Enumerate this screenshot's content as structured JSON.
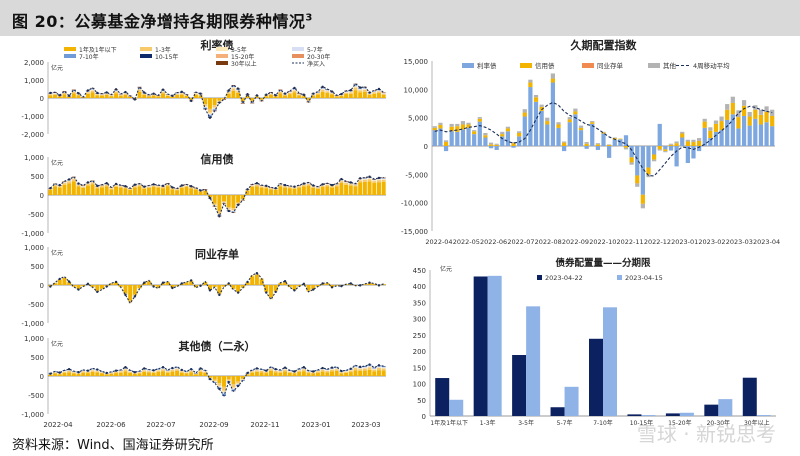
{
  "page": {
    "title": "图 20：公募基金净增持各期限券种情况",
    "title_sup": "3",
    "source": "资料来源：Wind、国海证券研究所",
    "watermark": "雪球 · 新锐思考"
  },
  "colors": {
    "lt1y": "#f2b400",
    "y1_3": "#f7c96a",
    "y3_5": "#fbe7b8",
    "y5_7": "#d9dff2",
    "y7_10": "#6f9bd8",
    "y10_15": "#0e2a6b",
    "y15_20": "#f5b07a",
    "y20_30": "#e69060",
    "y30": "#7a3a10",
    "net": "#1b2f5a",
    "rate": "#7da7de",
    "credit": "#f2b400",
    "ncd": "#f08a50",
    "other": "#b3b3b3",
    "ma": "#1b2f5a",
    "d0422": "#0b2160",
    "d0415": "#8fb3e6"
  },
  "chart_data": [
    {
      "type": "bar",
      "title": "利率债",
      "unit": "亿元",
      "yticks": [
        "2,000",
        "1,000",
        "0",
        "-1,000",
        "-2,000"
      ],
      "ylim": [
        -2000,
        2000
      ],
      "legend": [
        "1年及1年以下",
        "1-3年",
        "3-5年",
        "5-7年",
        "7-10年",
        "10-15年",
        "15-20年",
        "20-30年",
        "30年以上",
        "净买入"
      ],
      "net": [
        280,
        320,
        150,
        380,
        120,
        460,
        260,
        60,
        420,
        560,
        280,
        240,
        310,
        190,
        480,
        230,
        330,
        120,
        -80,
        620,
        300,
        180,
        240,
        150,
        460,
        220,
        120,
        300,
        340,
        220,
        -160,
        330,
        240,
        -620,
        -1100,
        -720,
        -260,
        -80,
        420,
        720,
        520,
        -300,
        210,
        -280,
        140,
        -160,
        180,
        320,
        150,
        460,
        240,
        390,
        560,
        260,
        180,
        -220,
        240,
        350,
        620,
        500,
        360,
        150,
        220,
        400,
        430,
        790,
        580,
        620,
        300,
        420,
        500,
        310
      ]
    },
    {
      "type": "bar",
      "title": "信用债",
      "unit": "亿元",
      "yticks": [
        "1,000",
        "500",
        "0",
        "-500",
        "-1,000"
      ],
      "ylim": [
        -1000,
        1000
      ],
      "net": [
        180,
        300,
        260,
        360,
        410,
        480,
        300,
        250,
        330,
        380,
        240,
        270,
        310,
        200,
        290,
        260,
        230,
        180,
        270,
        300,
        220,
        250,
        280,
        260,
        240,
        310,
        200,
        170,
        250,
        280,
        230,
        190,
        120,
        150,
        -80,
        -300,
        -560,
        -220,
        -420,
        -460,
        -260,
        -140,
        150,
        280,
        310,
        260,
        240,
        200,
        180,
        300,
        260,
        240,
        220,
        260,
        300,
        330,
        250,
        220,
        280,
        310,
        260,
        300,
        420,
        360,
        330,
        300,
        440,
        460,
        480,
        420,
        450,
        460
      ]
    },
    {
      "type": "bar",
      "title": "同业存单",
      "unit": "亿元",
      "yticks": [
        "1,000",
        "500",
        "0",
        "-500",
        "-1,000"
      ],
      "ylim": [
        -1000,
        1000
      ],
      "net": [
        -40,
        60,
        160,
        220,
        90,
        -50,
        -120,
        -40,
        30,
        -60,
        -180,
        -120,
        -40,
        50,
        80,
        -60,
        -260,
        -480,
        -300,
        -100,
        60,
        120,
        -40,
        -90,
        60,
        90,
        -80,
        -40,
        40,
        80,
        120,
        -70,
        -20,
        90,
        -140,
        -60,
        -260,
        -50,
        40,
        -120,
        -200,
        -80,
        80,
        260,
        310,
        180,
        -200,
        -380,
        -180,
        60,
        100,
        -60,
        -140,
        -40,
        30,
        -180,
        -120,
        -40,
        40,
        60,
        -60,
        -20,
        -30,
        20,
        40,
        -20,
        -10,
        30,
        60,
        40,
        -10,
        30
      ]
    },
    {
      "type": "bar",
      "title": "其他债（二永）",
      "unit": "亿元",
      "yticks": [
        "1,000",
        "500",
        "0",
        "-500",
        "-1,000"
      ],
      "ylim": [
        -1000,
        1000
      ],
      "xlabels": [
        "2022-04",
        "2022-06",
        "2022-07",
        "2022-09",
        "2022-11",
        "2023-01",
        "2023-03"
      ],
      "net": [
        60,
        120,
        90,
        150,
        180,
        130,
        100,
        160,
        140,
        200,
        170,
        120,
        80,
        110,
        140,
        160,
        230,
        150,
        100,
        130,
        200,
        170,
        150,
        190,
        230,
        160,
        210,
        240,
        160,
        120,
        180,
        80,
        200,
        150,
        -80,
        -180,
        -340,
        -520,
        -160,
        -400,
        -260,
        -120,
        80,
        160,
        200,
        180,
        140,
        240,
        180,
        160,
        220,
        150,
        120,
        190,
        230,
        140,
        120,
        160,
        210,
        180,
        220,
        240,
        130,
        150,
        190,
        280,
        240,
        260,
        300,
        220,
        280,
        260
      ]
    },
    {
      "type": "bar",
      "title": "久期配置指数",
      "yticks": [
        "15,000",
        "10,000",
        "5,000",
        "0",
        "-5,000",
        "-10,000",
        "-15,000"
      ],
      "ylim": [
        -15000,
        15000
      ],
      "legend": [
        "利率债",
        "信用债",
        "同业存单",
        "其他",
        "4周移动平均"
      ],
      "xlabels": [
        "2022-04",
        "2022-05",
        "2022-06",
        "2022-07",
        "2022-08",
        "2022-09",
        "2022-10",
        "2022-11",
        "2022-12",
        "2023-01",
        "2023-02",
        "2023-03",
        "2023-04"
      ],
      "rate": [
        2800,
        3100,
        -900,
        2600,
        2500,
        2900,
        3200,
        2100,
        4300,
        1500,
        -400,
        -700,
        1700,
        2600,
        -300,
        1700,
        5200,
        10400,
        7800,
        6200,
        3800,
        11200,
        3200,
        -900,
        4200,
        5600,
        2800,
        -500,
        3900,
        -700,
        2200,
        -2100,
        1100,
        1200,
        1900,
        -2000,
        -5200,
        -8600,
        -3800,
        -1500,
        3900,
        -600,
        -800,
        -3600,
        1500,
        -3000,
        -2200,
        -900,
        3200,
        1400,
        2500,
        2800,
        4600,
        5600,
        3100,
        5300,
        3600,
        4800,
        3800,
        4200,
        3500
      ],
      "credit": [
        400,
        600,
        700,
        800,
        1000,
        900,
        600,
        500,
        500,
        400,
        300,
        200,
        400,
        500,
        500,
        600,
        700,
        800,
        800,
        700,
        600,
        700,
        600,
        600,
        500,
        500,
        400,
        400,
        300,
        300,
        200,
        200,
        300,
        100,
        -300,
        -900,
        -1400,
        -1600,
        -1200,
        -900,
        -600,
        -300,
        200,
        500,
        700,
        800,
        700,
        900,
        1100,
        1300,
        1400,
        1600,
        1800,
        2000,
        2000,
        1800,
        1600,
        1600,
        1700,
        1800,
        1800
      ],
      "ncd": [
        0,
        0,
        0,
        0,
        0,
        0,
        0,
        0,
        0,
        0,
        0,
        0,
        0,
        0,
        0,
        0,
        0,
        0,
        0,
        0,
        0,
        0,
        0,
        0,
        0,
        0,
        0,
        0,
        0,
        0,
        0,
        0,
        0,
        0,
        0,
        0,
        0,
        0,
        0,
        0,
        0,
        0,
        0,
        0,
        0,
        0,
        0,
        0,
        0,
        0,
        0,
        0,
        0,
        0,
        0,
        0,
        0,
        0,
        0,
        0,
        0
      ],
      "other": [
        300,
        400,
        300,
        500,
        400,
        600,
        300,
        200,
        300,
        400,
        300,
        200,
        400,
        300,
        200,
        300,
        600,
        500,
        400,
        400,
        600,
        900,
        400,
        200,
        400,
        500,
        400,
        300,
        200,
        200,
        100,
        100,
        100,
        -100,
        -300,
        -400,
        -600,
        -800,
        -500,
        -300,
        -200,
        -200,
        200,
        300,
        300,
        300,
        400,
        500,
        500,
        600,
        600,
        800,
        1000,
        1100,
        1200,
        1000,
        800,
        800,
        900,
        1000,
        1100
      ],
      "ma": [
        2600,
        2800,
        2500,
        2700,
        2800,
        3000,
        3300,
        3400,
        3600,
        3300,
        2800,
        2100,
        1300,
        800,
        500,
        700,
        1300,
        2800,
        4700,
        6400,
        7200,
        7700,
        7200,
        6100,
        5400,
        5000,
        4400,
        3800,
        3600,
        3000,
        2300,
        1600,
        1200,
        700,
        400,
        -700,
        -2300,
        -4000,
        -5200,
        -5300,
        -4200,
        -3000,
        -1800,
        -900,
        -200,
        -300,
        -600,
        -200,
        300,
        1000,
        1900,
        2700,
        3500,
        4600,
        5800,
        6600,
        7000,
        6800,
        6400,
        6100,
        5900
      ]
    },
    {
      "type": "bar",
      "title": "债券配置量——分期限",
      "unit": "亿元",
      "yticks": [
        "450",
        "400",
        "350",
        "300",
        "250",
        "200",
        "150",
        "100",
        "50",
        "0"
      ],
      "ylim": [
        0,
        450
      ],
      "categories": [
        "1年及1年以下",
        "1-3年",
        "3-5年",
        "5-7年",
        "7-10年",
        "10-15年",
        "15-20年",
        "20-30年",
        "30年以上"
      ],
      "series": [
        {
          "name": "2023-04-22",
          "values": [
            117,
            430,
            188,
            27,
            238,
            5,
            8,
            35,
            118
          ]
        },
        {
          "name": "2023-04-15",
          "values": [
            50,
            432,
            338,
            90,
            335,
            3,
            10,
            52,
            3
          ]
        }
      ]
    }
  ]
}
